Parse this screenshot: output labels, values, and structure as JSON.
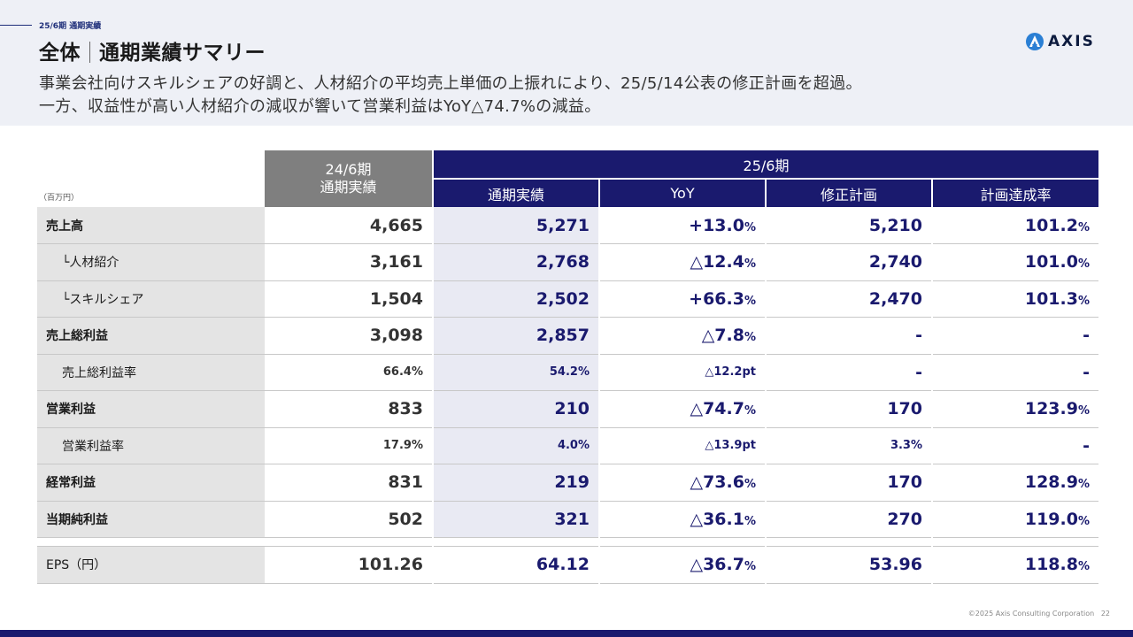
{
  "header": {
    "section": "25/6期 通期実績",
    "title_main": "全体",
    "title_sub": "通期業績サマリー",
    "lead_line1": "事業会社向けスキルシェアの好調と、人材紹介の平均売上単価の上振れにより、25/5/14公表の修正計画を超過。",
    "lead_line2": "一方、収益性が高い人材紹介の減収が響いて営業利益はYoY△74.7%の減益。",
    "logo_text": "AXIS"
  },
  "table": {
    "unit": "（百万円）",
    "prev_header_line1": "24/6期",
    "prev_header_line2": "通期実績",
    "group_header": "25/6期",
    "sub_headers": [
      "通期実績",
      "YoY",
      "修正計画",
      "計画達成率"
    ],
    "rows": [
      {
        "label": "売上高",
        "prev": "4,665",
        "cur": "5,271",
        "yoy": "+13.0",
        "yoy_unit": "%",
        "plan": "5,210",
        "plan_unit": "",
        "rate": "101.2",
        "rate_unit": "%"
      },
      {
        "label": "└人材紹介",
        "prev": "3,161",
        "cur": "2,768",
        "yoy": "△12.4",
        "yoy_unit": "%",
        "plan": "2,740",
        "plan_unit": "",
        "rate": "101.0",
        "rate_unit": "%"
      },
      {
        "label": "└スキルシェア",
        "prev": "1,504",
        "cur": "2,502",
        "yoy": "+66.3",
        "yoy_unit": "%",
        "plan": "2,470",
        "plan_unit": "",
        "rate": "101.3",
        "rate_unit": "%"
      },
      {
        "label": "売上総利益",
        "prev": "3,098",
        "cur": "2,857",
        "yoy": "△7.8",
        "yoy_unit": "%",
        "plan": "-",
        "plan_unit": "",
        "rate": "-",
        "rate_unit": ""
      },
      {
        "label": "売上総利益率",
        "prev": "66.4",
        "prev_unit": "%",
        "cur": "54.2",
        "cur_unit": "%",
        "yoy": "△12.2",
        "yoy_unit": "pt",
        "plan": "-",
        "plan_unit": "",
        "rate": "-",
        "rate_unit": ""
      },
      {
        "label": "営業利益",
        "prev": "833",
        "cur": "210",
        "yoy": "△74.7",
        "yoy_unit": "%",
        "plan": "170",
        "plan_unit": "",
        "rate": "123.9",
        "rate_unit": "%"
      },
      {
        "label": "営業利益率",
        "prev": "17.9",
        "prev_unit": "%",
        "cur": "4.0",
        "cur_unit": "%",
        "yoy": "△13.9",
        "yoy_unit": "pt",
        "plan": "3.3",
        "plan_unit": "%",
        "rate": "-",
        "rate_unit": ""
      },
      {
        "label": "経常利益",
        "prev": "831",
        "cur": "219",
        "yoy": "△73.6",
        "yoy_unit": "%",
        "plan": "170",
        "plan_unit": "",
        "rate": "128.9",
        "rate_unit": "%"
      },
      {
        "label": "当期純利益",
        "prev": "502",
        "cur": "321",
        "yoy": "△36.1",
        "yoy_unit": "%",
        "plan": "270",
        "plan_unit": "",
        "rate": "119.0",
        "rate_unit": "%"
      }
    ],
    "eps": {
      "label": "EPS（円）",
      "prev": "101.26",
      "cur": "64.12",
      "yoy": "△36.7",
      "yoy_unit": "%",
      "plan": "53.96",
      "rate": "118.8",
      "rate_unit": "%"
    }
  },
  "footer": {
    "copyright": "©2025 Axis Consulting Corporation",
    "page_number": "22"
  },
  "colors": {
    "navy": "#1a1a6e",
    "header_gray": "#7f7f7f",
    "label_bg": "#e4e4e4",
    "current_bg": "#e9eaf3"
  }
}
